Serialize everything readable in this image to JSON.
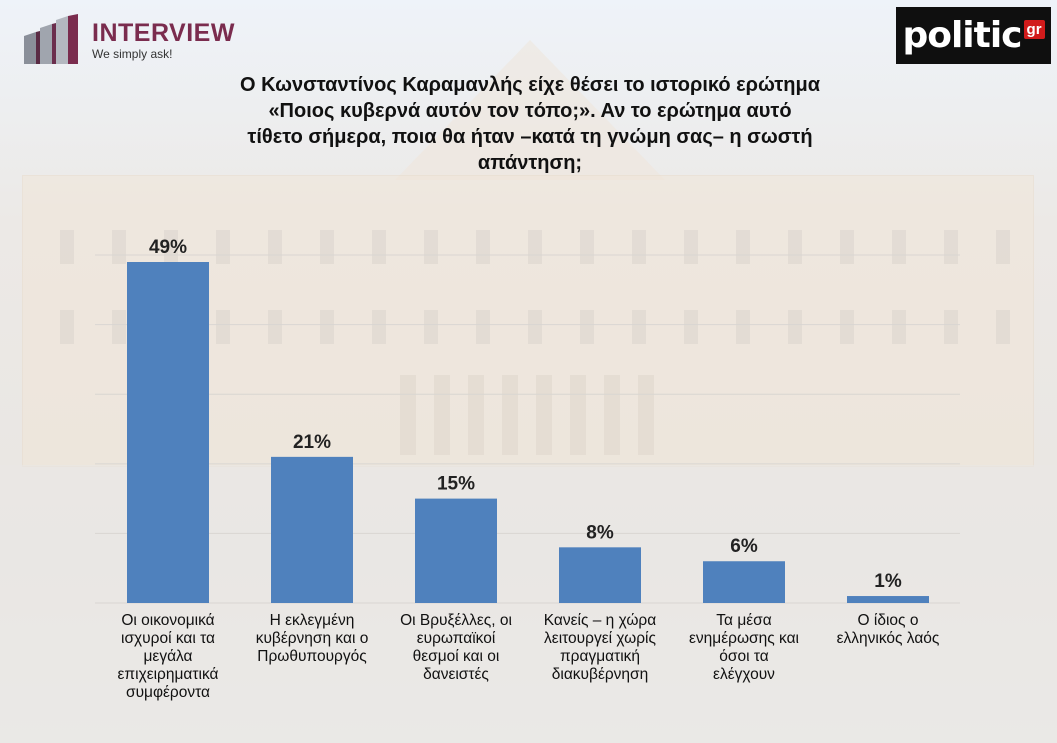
{
  "header": {
    "brand": "INTERVIEW",
    "tagline": "We simply ask!",
    "brand_color": "#7a2c4e",
    "partner_logo_text": "politic",
    "partner_logo_badge": "gr",
    "partner_badge_color": "#d11b1b"
  },
  "title_lines": [
    "Ο Κωνσταντίνος Καραμανλής είχε θέσει το ιστορικό ερώτημα",
    "«Ποιος κυβερνά αυτόν τον τόπο;». Αν το ερώτημα αυτό",
    "τίθετο σήμερα, ποια θα ήταν –κατά τη γνώμη σας– η σωστή",
    "απάντηση;"
  ],
  "chart_data": {
    "type": "bar",
    "bar_color": "#4f81bd",
    "unit": "%",
    "ylim": [
      0,
      55
    ],
    "grid": true,
    "categories": [
      "Οι οικονομικά ισχυροί και τα μεγάλα επιχειρηματικά συμφέροντα",
      "Η εκλεγμένη κυβέρνηση και ο Πρωθυπουργός",
      "Οι Βρυξέλλες, οι ευρωπαϊκοί θεσμοί και οι δανειστές",
      "Κανείς – η χώρα λειτουργεί χωρίς πραγματική διακυβέρνηση",
      "Τα μέσα ενημέρωσης και όσοι τα ελέγχουν",
      "Ο ίδιος ο ελληνικός λαός"
    ],
    "category_lines": [
      [
        "Οι οικονομικά",
        "ισχυροί και τα",
        "μεγάλα",
        "επιχειρηματικά",
        "συμφέροντα"
      ],
      [
        "Η εκλεγμένη",
        "κυβέρνηση και ο",
        "Πρωθυπουργός"
      ],
      [
        "Οι Βρυξέλλες, οι",
        "ευρωπαϊκοί",
        "θεσμοί και οι",
        "δανειστές"
      ],
      [
        "Κανείς – η χώρα",
        "λειτουργεί χωρίς",
        "πραγματική",
        "διακυβέρνηση"
      ],
      [
        "Τα μέσα",
        "ενημέρωσης και",
        "όσοι τα",
        "ελέγχουν"
      ],
      [
        "Ο ίδιος ο",
        "ελληνικός λαός"
      ]
    ],
    "values": [
      49,
      21,
      15,
      8,
      6,
      1
    ],
    "data_labels": [
      "49%",
      "21%",
      "15%",
      "8%",
      "6%",
      "1%"
    ]
  }
}
